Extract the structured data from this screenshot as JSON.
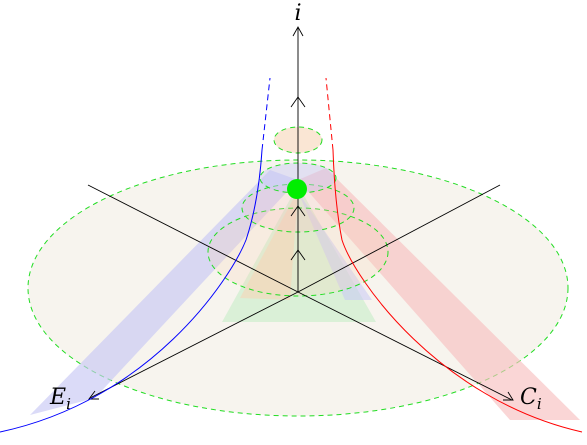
{
  "labels": {
    "i_axis": "i",
    "e_axis_main": "E",
    "e_axis_sub": "i",
    "c_axis_main": "C",
    "c_axis_sub": "i"
  },
  "colors": {
    "axis": "#000000",
    "left_curve": "#0000ff",
    "right_curve": "#ff0000",
    "level_ellipse": "#22dd22",
    "ellipse_fill": "#f7f4ee",
    "left_band": "#c8c8f5",
    "right_band": "#f8c0c0",
    "green_triangle": "#cdeecd",
    "orange_triangle": "#f6d5b8",
    "center_dot": "#00ee00"
  }
}
